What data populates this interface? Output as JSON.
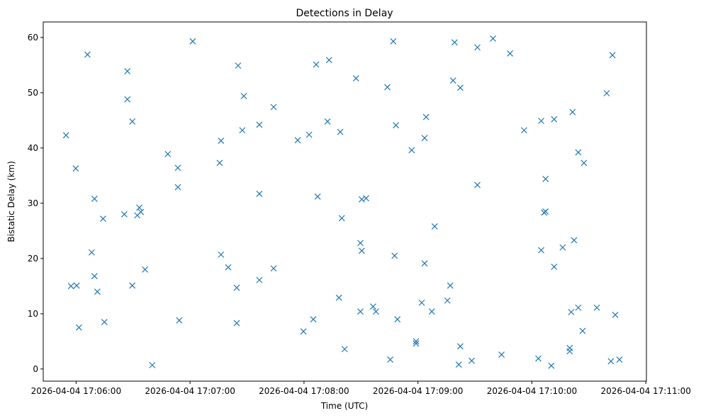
{
  "chart_data": {
    "type": "scatter",
    "title": "Detections in Delay",
    "xlabel": "Time (UTC)",
    "ylabel": "Bistatic Delay (km)",
    "marker": "x",
    "color": "#1f77b4",
    "grid": false,
    "x_unit": "seconds since 2026-04-04 17:06:00 UTC",
    "xlim": [
      -17.3,
      300.3
    ],
    "ylim": [
      -2.2,
      62.8
    ],
    "x_ticks": [
      {
        "value": 0,
        "label": "2026-04-04 17:06:00"
      },
      {
        "value": 60,
        "label": "2026-04-04 17:07:00"
      },
      {
        "value": 120,
        "label": "2026-04-04 17:08:00"
      },
      {
        "value": 180,
        "label": "2026-04-04 17:09:00"
      },
      {
        "value": 240,
        "label": "2026-04-04 17:10:00"
      },
      {
        "value": 300,
        "label": "2026-04-04 17:11:00"
      }
    ],
    "y_ticks": [
      {
        "value": 0,
        "label": "0"
      },
      {
        "value": 10,
        "label": "10"
      },
      {
        "value": 20,
        "label": "20"
      },
      {
        "value": 30,
        "label": "30"
      },
      {
        "value": 40,
        "label": "40"
      },
      {
        "value": 50,
        "label": "50"
      },
      {
        "value": 60,
        "label": "60"
      }
    ],
    "points": [
      {
        "x": -5.3,
        "y": 42.3
      },
      {
        "x": -2.7,
        "y": 15.0
      },
      {
        "x": -0.2,
        "y": 36.3
      },
      {
        "x": 0.3,
        "y": 15.1
      },
      {
        "x": 1.5,
        "y": 7.5
      },
      {
        "x": 6.0,
        "y": 56.9
      },
      {
        "x": 8.2,
        "y": 21.1
      },
      {
        "x": 9.7,
        "y": 30.8
      },
      {
        "x": 9.7,
        "y": 16.8
      },
      {
        "x": 11.2,
        "y": 14.0
      },
      {
        "x": 14.2,
        "y": 27.2
      },
      {
        "x": 14.9,
        "y": 8.5
      },
      {
        "x": 25.4,
        "y": 28.0
      },
      {
        "x": 27.0,
        "y": 53.9
      },
      {
        "x": 27.0,
        "y": 48.8
      },
      {
        "x": 29.6,
        "y": 44.8
      },
      {
        "x": 29.6,
        "y": 15.1
      },
      {
        "x": 32.2,
        "y": 27.8
      },
      {
        "x": 33.3,
        "y": 29.2
      },
      {
        "x": 34.1,
        "y": 28.4
      },
      {
        "x": 36.3,
        "y": 18.0
      },
      {
        "x": 40.1,
        "y": 0.7
      },
      {
        "x": 48.3,
        "y": 38.9
      },
      {
        "x": 53.6,
        "y": 36.4
      },
      {
        "x": 53.6,
        "y": 32.9
      },
      {
        "x": 54.3,
        "y": 8.8
      },
      {
        "x": 61.4,
        "y": 59.3
      },
      {
        "x": 75.6,
        "y": 37.3
      },
      {
        "x": 76.3,
        "y": 41.3
      },
      {
        "x": 76.3,
        "y": 20.7
      },
      {
        "x": 80.1,
        "y": 18.4
      },
      {
        "x": 84.6,
        "y": 14.7
      },
      {
        "x": 84.6,
        "y": 8.3
      },
      {
        "x": 85.3,
        "y": 54.9
      },
      {
        "x": 87.5,
        "y": 43.2
      },
      {
        "x": 88.3,
        "y": 49.4
      },
      {
        "x": 96.5,
        "y": 44.2
      },
      {
        "x": 96.5,
        "y": 31.7
      },
      {
        "x": 96.5,
        "y": 16.1
      },
      {
        "x": 104.0,
        "y": 47.4
      },
      {
        "x": 104.0,
        "y": 18.2
      },
      {
        "x": 116.7,
        "y": 41.4
      },
      {
        "x": 119.7,
        "y": 6.8
      },
      {
        "x": 122.7,
        "y": 42.4
      },
      {
        "x": 124.9,
        "y": 9.0
      },
      {
        "x": 126.4,
        "y": 55.1
      },
      {
        "x": 127.2,
        "y": 31.2
      },
      {
        "x": 132.4,
        "y": 44.8
      },
      {
        "x": 133.2,
        "y": 55.9
      },
      {
        "x": 138.4,
        "y": 12.9
      },
      {
        "x": 139.1,
        "y": 42.9
      },
      {
        "x": 139.9,
        "y": 27.3
      },
      {
        "x": 141.4,
        "y": 3.6
      },
      {
        "x": 147.4,
        "y": 52.6
      },
      {
        "x": 149.7,
        "y": 22.8
      },
      {
        "x": 149.7,
        "y": 10.4
      },
      {
        "x": 150.4,
        "y": 30.7
      },
      {
        "x": 150.4,
        "y": 21.4
      },
      {
        "x": 152.7,
        "y": 30.9
      },
      {
        "x": 156.4,
        "y": 11.3
      },
      {
        "x": 157.9,
        "y": 10.4
      },
      {
        "x": 163.9,
        "y": 51.0
      },
      {
        "x": 165.4,
        "y": 1.7
      },
      {
        "x": 167.0,
        "y": 59.3
      },
      {
        "x": 167.7,
        "y": 20.5
      },
      {
        "x": 168.4,
        "y": 44.1
      },
      {
        "x": 169.2,
        "y": 9.0
      },
      {
        "x": 176.7,
        "y": 39.6
      },
      {
        "x": 179.0,
        "y": 5.0
      },
      {
        "x": 179.0,
        "y": 4.6
      },
      {
        "x": 182.0,
        "y": 12.0
      },
      {
        "x": 183.5,
        "y": 41.8
      },
      {
        "x": 183.5,
        "y": 19.1
      },
      {
        "x": 184.3,
        "y": 45.6
      },
      {
        "x": 187.3,
        "y": 10.4
      },
      {
        "x": 188.8,
        "y": 25.8
      },
      {
        "x": 195.5,
        "y": 12.4
      },
      {
        "x": 197.0,
        "y": 15.1
      },
      {
        "x": 198.5,
        "y": 52.2
      },
      {
        "x": 199.3,
        "y": 59.1
      },
      {
        "x": 201.5,
        "y": 0.8
      },
      {
        "x": 202.3,
        "y": 50.9
      },
      {
        "x": 202.3,
        "y": 4.1
      },
      {
        "x": 208.3,
        "y": 1.5
      },
      {
        "x": 211.3,
        "y": 58.2
      },
      {
        "x": 211.3,
        "y": 33.3
      },
      {
        "x": 219.5,
        "y": 59.8
      },
      {
        "x": 224.0,
        "y": 2.6
      },
      {
        "x": 228.5,
        "y": 57.1
      },
      {
        "x": 235.9,
        "y": 43.2
      },
      {
        "x": 243.4,
        "y": 1.9
      },
      {
        "x": 244.9,
        "y": 44.9
      },
      {
        "x": 244.9,
        "y": 21.5
      },
      {
        "x": 246.4,
        "y": 28.3
      },
      {
        "x": 247.2,
        "y": 34.4
      },
      {
        "x": 247.2,
        "y": 28.5
      },
      {
        "x": 250.2,
        "y": 0.6
      },
      {
        "x": 251.7,
        "y": 45.2
      },
      {
        "x": 251.7,
        "y": 18.5
      },
      {
        "x": 256.2,
        "y": 22.0
      },
      {
        "x": 259.9,
        "y": 3.8
      },
      {
        "x": 259.9,
        "y": 3.2
      },
      {
        "x": 260.7,
        "y": 10.3
      },
      {
        "x": 261.4,
        "y": 46.5
      },
      {
        "x": 262.2,
        "y": 23.3
      },
      {
        "x": 264.4,
        "y": 39.2
      },
      {
        "x": 264.4,
        "y": 11.1
      },
      {
        "x": 266.7,
        "y": 6.9
      },
      {
        "x": 267.4,
        "y": 37.3
      },
      {
        "x": 274.2,
        "y": 11.1
      },
      {
        "x": 279.4,
        "y": 49.9
      },
      {
        "x": 281.6,
        "y": 1.4
      },
      {
        "x": 282.4,
        "y": 56.8
      },
      {
        "x": 283.9,
        "y": 9.8
      },
      {
        "x": 286.1,
        "y": 1.7
      }
    ]
  }
}
